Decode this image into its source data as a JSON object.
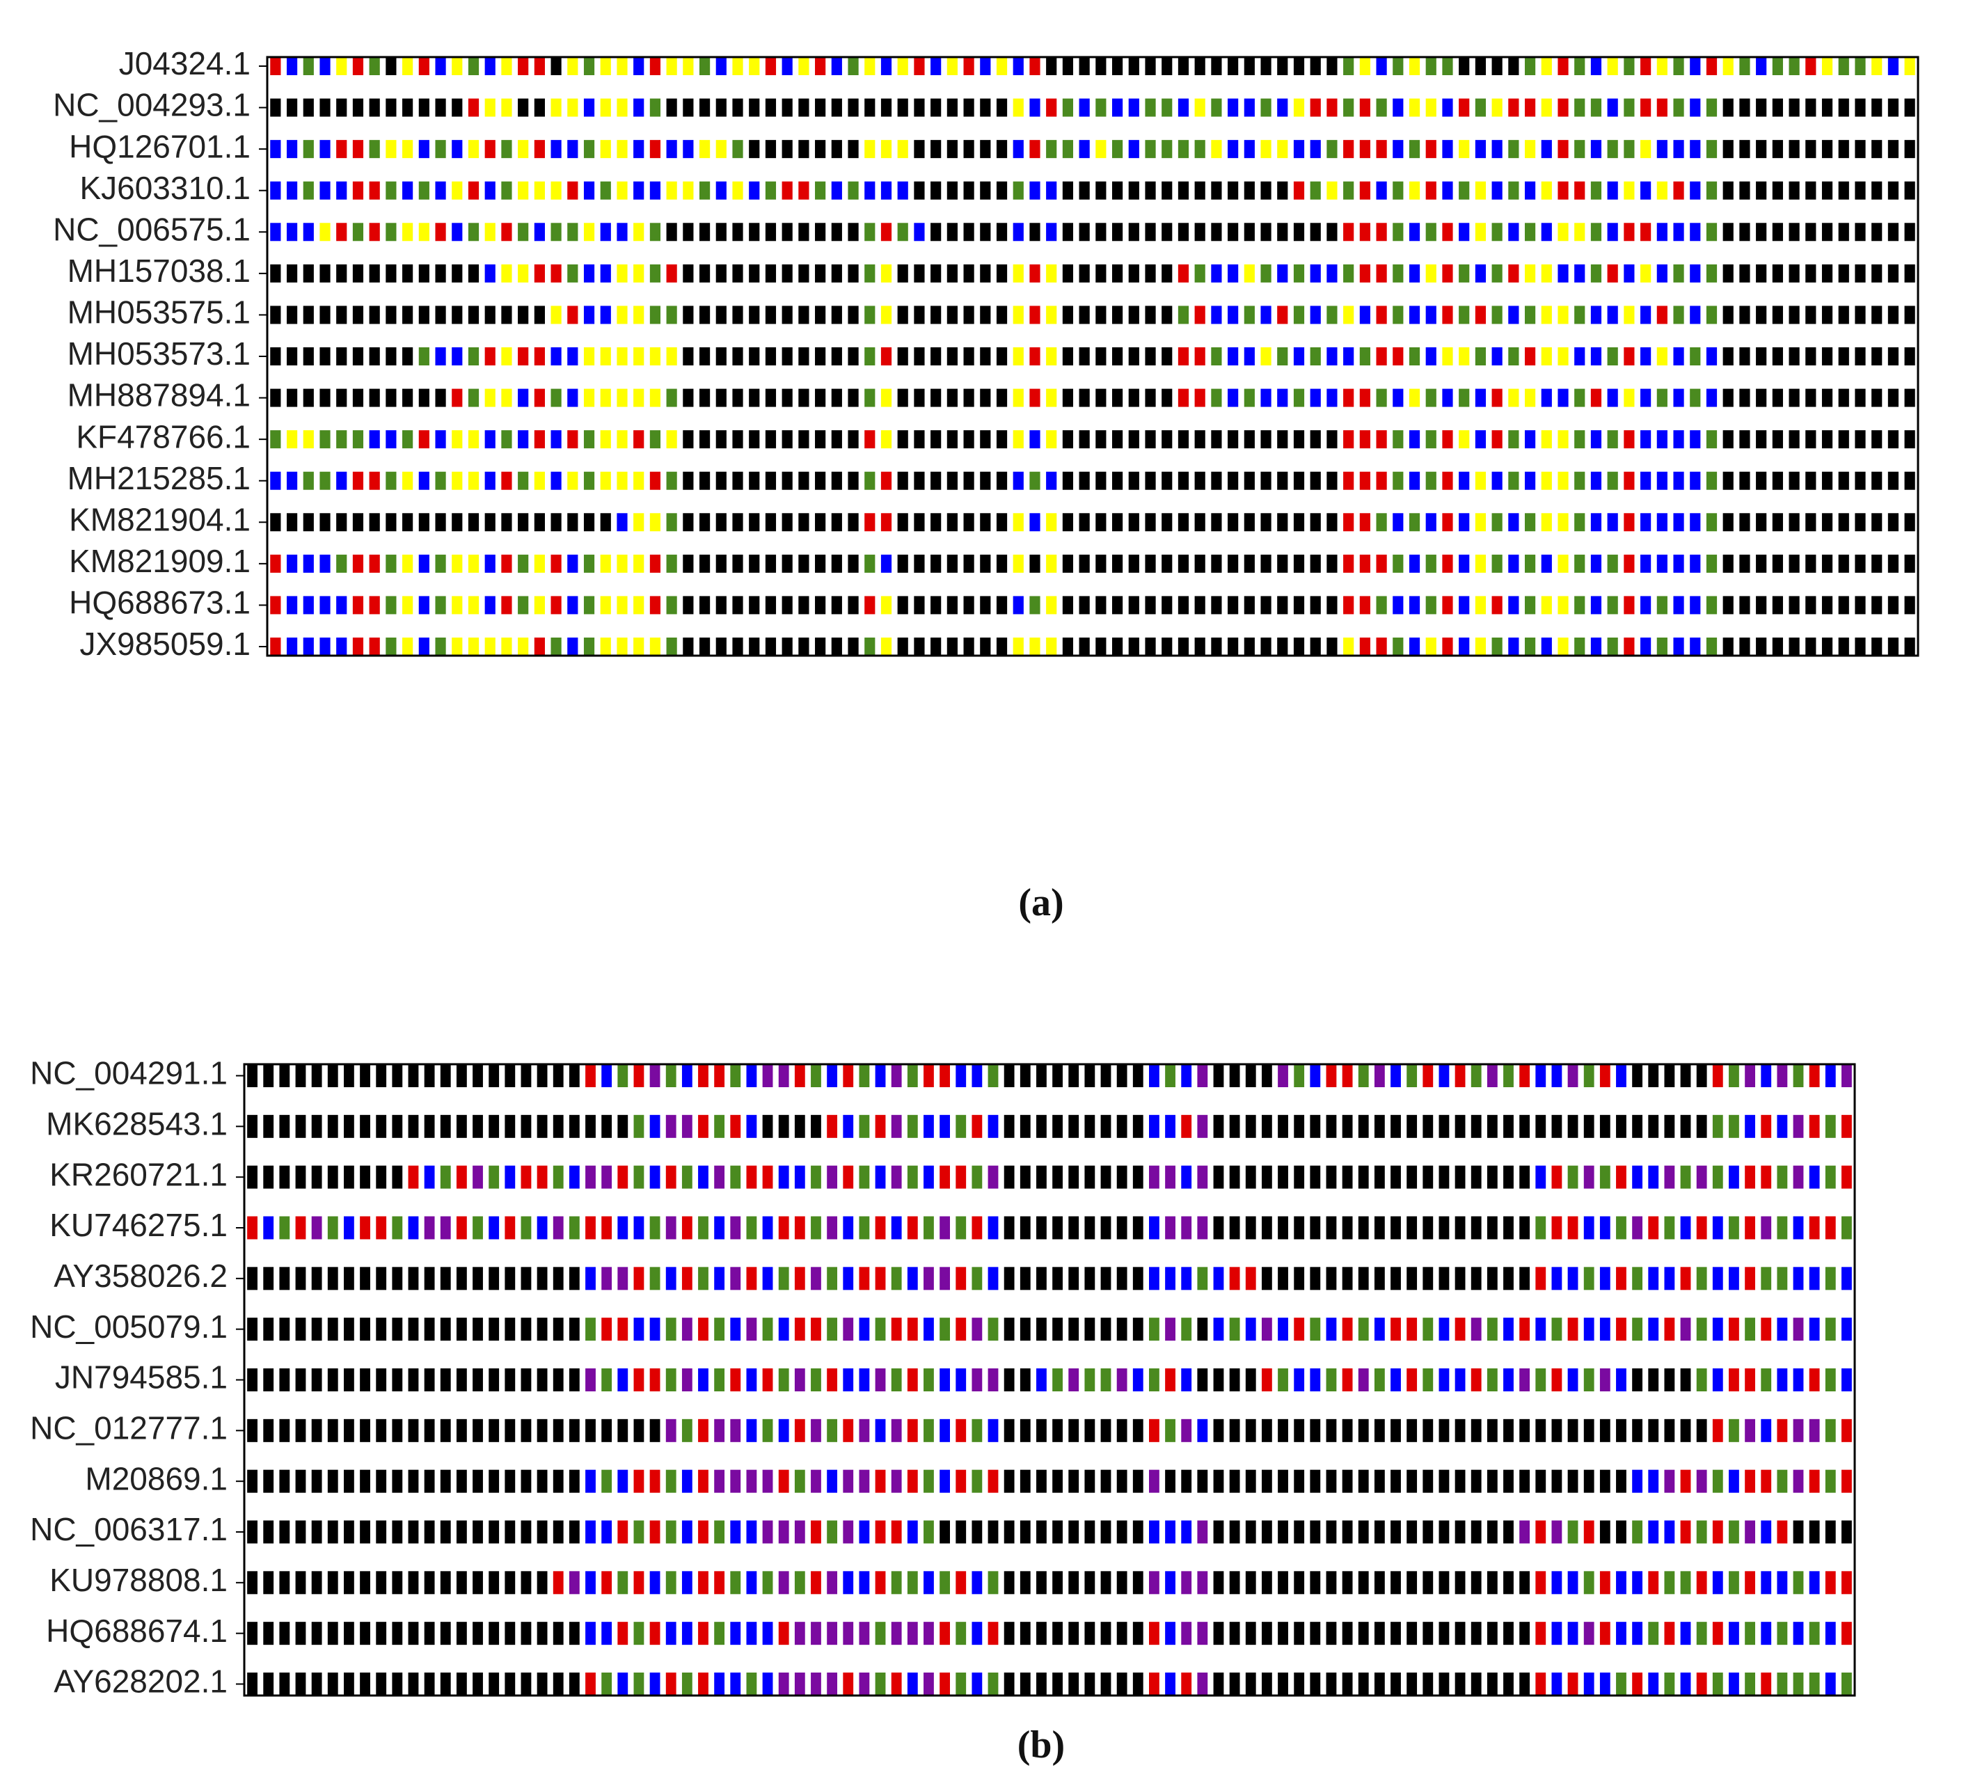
{
  "panels": [
    {
      "caption": "(a)",
      "colors": {
        "y": "#ffff00",
        "r": "#e00000",
        "b": "#0000ff",
        "g": "#4a8a1f",
        "k": "#000000"
      },
      "rows": [
        {
          "label": "J04324.1",
          "sequence": "rbgbyrgkyrbygbyrrkygyybryygbyyrbyrbgybyrbyrbybrkkkkkkkkkkkkkkkkkkgybgyggkkkkgyrgbygrygbrygbggryggyby"
        },
        {
          "label": "NC_004293.1",
          "sequence": "kkkkkkkkkkkkryykkyybyybgkkkkkkkkkkkkkkkkkkkkkybrgbgbbggbygbbgbyrrgrgbyybrgyrryrggbgrrgbgkkkkkkkkkkkk"
        },
        {
          "label": "HQ126701.1",
          "sequence": "bbgbrrgyybgbyrgyrbbgyybrbbyygkkkkkkkyyykkkkkkbrggbygbggggybbyybbgrrrbgrbybbgybrgbggybbbgkkkkkkkkkkkk"
        },
        {
          "label": "KJ603310.1",
          "sequence": "bbgbbrrgbgbyrbgyyyrbgybbyygbybgrrgbgbbbkkkkkkgbbkkkkkkkkkkkkkkrgygrbgyrbgybgbyrrgbybyrbgkkkkkkkkkkkk"
        },
        {
          "label": "NC_006575.1",
          "sequence": "bbbyrgrgyyrbgyrgbggybbygkkkkkkkkkkkkgrgbkkkkkbkbkkkkkkkkkkkkkkkkkrrrgbgrbygbgbyygbrrbbbgkkkkkkkkkkkk"
        },
        {
          "label": "MH157038.1",
          "sequence": "kkkkkkkkkkkkkbyyrrgbbyygrkkkkkkkkkkkgykkkkkkkyrykkkkkkkrgbbygbgbbgrrgbyrgbgryybbgrbybgbgkkkkkkkkkkkk"
        },
        {
          "label": "MH053575.1",
          "sequence": "kkkkkkkkkkkkkkkkkyrbbyyggkkkkkkkkkkkgykkkkkkkyrykkkkkkkgrbbgbrgbgybrgbbrgrgbgyygbbybrgbgkkkkkkkkkkkk"
        },
        {
          "label": "MH053573.1",
          "sequence": "kkkkkkkkkgbbgryrrbbyyyyyykkkkkkkkkkkgrkkkkkkkyrykkkkkkkrrgbbygbgbbgrrgbyygbgryybbgrbybgbkkkkkkkkkkkk"
        },
        {
          "label": "MH887894.1",
          "sequence": "kkkkkkkkkkkrgyybrgbyyyyygkkkkkkkkkkkgykkkkkkkyrykkkkkkkrrgbgbbgbbrrgbygbgbryybbgrbybgbgbkkkkkkkkkkkk"
        },
        {
          "label": "KF478766.1",
          "sequence": "gyygggbbgrbyybgbrbrgyyrgykkkkkkkkkkkrykkkkkkkybykkkkkkkkkkkkkkkkkrrrgbgrybrgbyygbgrbbbbgkkkkkkkkkkkk"
        },
        {
          "label": "MH215285.1",
          "sequence": "bbggbrrgybgyybrgybygyyyrgkkkkkkkkkkkgrkkkkkkkbgbkkkkkkkkkkkkkkkkkrrrgbgrbybgbyygbgrbbbbgkkkkkkkkkkkk"
        },
        {
          "label": "KM821904.1",
          "sequence": "kkkkkkkkkkkkkkkkkkkkkbyygkkkkkkkkkkkrrkkkkkkkybykkkkkkkkkkkkkkkkkrrgbgbrbygbgyygbbrbbbbgkkkkkkkkkkkk"
        },
        {
          "label": "KM821909.1",
          "sequence": "rbbbgrrgybgyybrgyrbgyyyrgkkkkkkkkkkkgbkkkkkkkykykkkkkkkkkkkkkkkkkrrrgbgrbygbgbygbgrbbbbgkkkkkkkkkkkk"
        },
        {
          "label": "HQ688673.1",
          "sequence": "rbbbbrrgybgyybrgyrbgyyyrgkkkkkkkkkkkrykkkkkkkbgykkkkkkkkkkkkkkkkkrrgbbgrbyrbgyygbgrbgbbgkkkkkkkkkkkk"
        },
        {
          "label": "JX985059.1",
          "sequence": "rbbbbrrgybgyyyyyrgbgyyyygkkkkkkkkkkkgykkkkkkkyyykkkkkkkkkkkkkkkkkyrrgbyrbygbgbygbgrbgbbgkkkkkkkkkkkk"
        }
      ]
    },
    {
      "caption": "(b)",
      "colors": {
        "r": "#e00000",
        "b": "#0000ff",
        "g": "#4a8a1f",
        "p": "#7a0aa0",
        "k": "#000000"
      },
      "rows": [
        {
          "label": "NC_004291.1",
          "sequence": "kkkkkkkkkkkkkkkkkkkkkrbgrpgbrrgbpprgbrgbpgrrbbgkkkkkkkkkbgbpkkkkpgbrrgpbgrbrgpgrbbpgrbkkkkkrgpbpgrbp"
        },
        {
          "label": "MK628543.1",
          "sequence": "kkkkkkkkkkkkkkkkkkkkkkkkgbpprgrbkkkkrbgrpgbbgrbkkkkkkkkkbbrpkkkkkkkkkkkkkkkkkkkkkkkkkkkkkkkggbrbprgr"
        },
        {
          "label": "KR260721.1",
          "sequence": "kkkkkkkkkkrbgrpgbrrgbpprgbrgbpgrrbbgprgbpgbrrgpkkkkkkkkkppbpkkkkkkkkkkkkkkkkkkkkbrgpgrbbpgpgbrrgpbgr"
        },
        {
          "label": "KU746275.1",
          "sequence": "rbgrpgbrrgbpprgbrgbpgrrbbgprgbpgbrrgpbgrbrgpgrbkkkkkkkkkbpppkkkkkkkkkkkkkkkkkkkkgrrbbgprgbrbgrpgbrrg"
        },
        {
          "label": "AY358026.2",
          "sequence": "kkkkkkkkkkkkkkkkkkkkkbpprgbrgbprbgrpgbrrgbpprgbkkkkkkkkkbbbgbrrkkkkkkkkkkkkkkkkkrbbgbrgbbrgbbrggbbgb"
        },
        {
          "label": "NC_005079.1",
          "sequence": "kkkkkkkkkkkkkkkkkkkkkgrrbbgprgbpgbrrgpbgrrbgrpgkkkkkkkkkgpgkbgbpbrgbrgbrrgbrpgbrbgrbbrgbrpgbrgrbpbgb"
        },
        {
          "label": "JN794585.1",
          "sequence": "kkkkkkkkkkkkkkkkkkkkkpgbrrgpbgrbrgpgrbbpgrgbbppkkbgpggpbgrbkkkkrgbbgrpgbrgbbrgbpgrbgpbkkkkgbrrgbbrgb"
        },
        {
          "label": "NC_012777.1",
          "sequence": "kkkkkkkkkkkkkkkkkkkkkkkkkkpgrppbgbrpgrpbprgbrgbkkkkkkkkkrgpbkkkkkkkkkkkkkkkkkkkkkkkkkkkkkkkrgpbrppgr"
        },
        {
          "label": "M20869.1",
          "sequence": "kkkkkkkkkkkkkkkkkkkkkbgbrrgbrpppprgpbpprprgbrgrkkkkkkkkkpkkkkkkkkkkkkkkkkkkkkkkkkkkkkkbbprpgbrrgprgr"
        },
        {
          "label": "NC_006317.1",
          "sequence": "kkkkkkkkkkkkkkkkkkkkkbbrgrgbrgbbppprgpbrrbgkkkkkkkkkkkkkbbbpkkkkkkkkkkkkkkkkkkkprpgrkkgbbrgrgpbrkkkk"
        },
        {
          "label": "KU978808.1",
          "sequence": "kkkkkkkkkkkkkkkkkkkrpbrgrbgbrrgbgpgrpbbrggbgrbgkkkkkkkkkpbppkkkkkkkkkkkkkkkkkkkkrbbgrbbrggrbgrbbgbrr"
        },
        {
          "label": "HQ688674.1",
          "sequence": "kkkkkkkkkkkkkkkkkkkkkbbrgrbbrgbbbrpppppgppprgbrkkkkkkkkkrbppkkkkkkkkkkkkkkkkkkkkrbbprbbgrbgrbgbgbgbr"
        },
        {
          "label": "AY628202.1",
          "sequence": "kkkkkkkkkkkkkkkkkkkkkrgbgbrgrbbgbpppprpgrbprgbgkkkkkkkkkrbrpkkkkkkkkkkkkkkkkkkkkrbrbbgrbgbrgbgrgggbg"
        }
      ]
    }
  ]
}
